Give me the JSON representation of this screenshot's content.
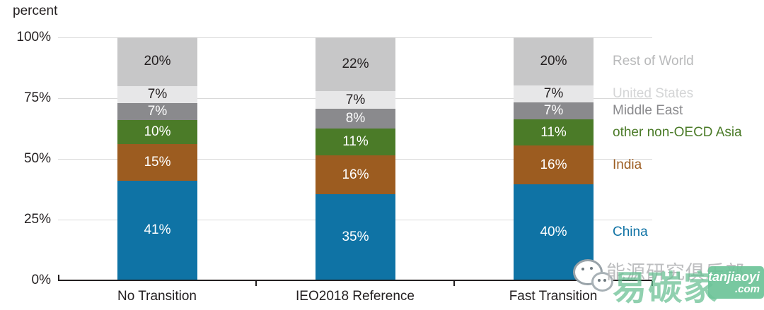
{
  "chart_data": {
    "type": "stacked-bar",
    "title": "",
    "ylabel": "percent",
    "xlabel": "",
    "ylim": [
      0,
      100
    ],
    "grid": true,
    "legend_position": "right",
    "categories": [
      "No Transition",
      "IEO2018 Reference",
      "Fast Transition"
    ],
    "y_ticks": [
      {
        "label": "0%",
        "value": 0
      },
      {
        "label": "25%",
        "value": 25
      },
      {
        "label": "50%",
        "value": 50
      },
      {
        "label": "75%",
        "value": 75
      },
      {
        "label": "100%",
        "value": 100
      }
    ],
    "series": [
      {
        "name": "China",
        "slug": "china",
        "color": "#0f73a5",
        "label_color": "#ffffff",
        "legend_color": "#1073a5",
        "values": [
          41,
          35,
          40
        ]
      },
      {
        "name": "India",
        "slug": "india",
        "color": "#9c5c20",
        "label_color": "#ffffff",
        "legend_color": "#9c5c20",
        "values": [
          15,
          16,
          16
        ]
      },
      {
        "name": "other non-OECD Asia",
        "slug": "asia",
        "color": "#4b7b28",
        "label_color": "#ffffff",
        "legend_color": "#4b7b28",
        "values": [
          10,
          11,
          11
        ]
      },
      {
        "name": "Middle East",
        "slug": "middle-east",
        "color": "#8a8a8d",
        "label_color": "#ffffff",
        "legend_color": "#8a8a8d",
        "values": [
          7,
          8,
          7
        ]
      },
      {
        "name": "United States",
        "slug": "us",
        "color": "#e7e7e8",
        "label_color": "#231f20",
        "legend_color": "#d4d5d6",
        "values": [
          7,
          7,
          7
        ]
      },
      {
        "name": "Rest of World",
        "slug": "rest-of-world",
        "color": "#c7c7c8",
        "label_color": "#231f20",
        "legend_color": "#b9babb",
        "values": [
          20,
          22,
          20
        ]
      }
    ]
  },
  "watermark": {
    "club_text": "能源研究俱乐部",
    "brand_text": "易碳家",
    "domain_line1": "tanjiaoyi",
    "domain_line2": ".com",
    "brand_green": "#65be90"
  }
}
